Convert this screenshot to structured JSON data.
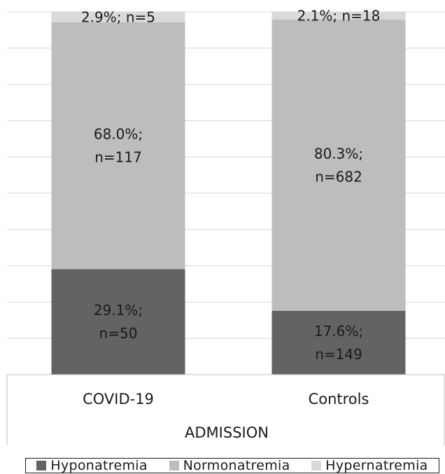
{
  "chart_data": {
    "type": "bar",
    "stacked": true,
    "percent_scale": true,
    "ylim": [
      0,
      100
    ],
    "grid": true,
    "legend_position": "bottom",
    "categories": [
      "COVID-19",
      "Controls"
    ],
    "xlabel": "ADMISSION",
    "series": [
      {
        "name": "Hyponatremia",
        "color": "#636363",
        "values": [
          29.1,
          17.6
        ],
        "labels": [
          [
            "29.1%;",
            "n=50"
          ],
          [
            "17.6%;",
            "n=149"
          ]
        ]
      },
      {
        "name": "Normonatremia",
        "color": "#bdbdbd",
        "values": [
          68.0,
          80.3
        ],
        "labels": [
          [
            "68.0%;",
            "n=117"
          ],
          [
            "80.3%;",
            "n=682"
          ]
        ]
      },
      {
        "name": "Hypernatremia",
        "color": "#d9d9d9",
        "values": [
          2.9,
          2.1
        ],
        "labels": [
          [
            "2.9%; n=5"
          ],
          [
            "2.1%; n=18"
          ]
        ]
      }
    ]
  }
}
